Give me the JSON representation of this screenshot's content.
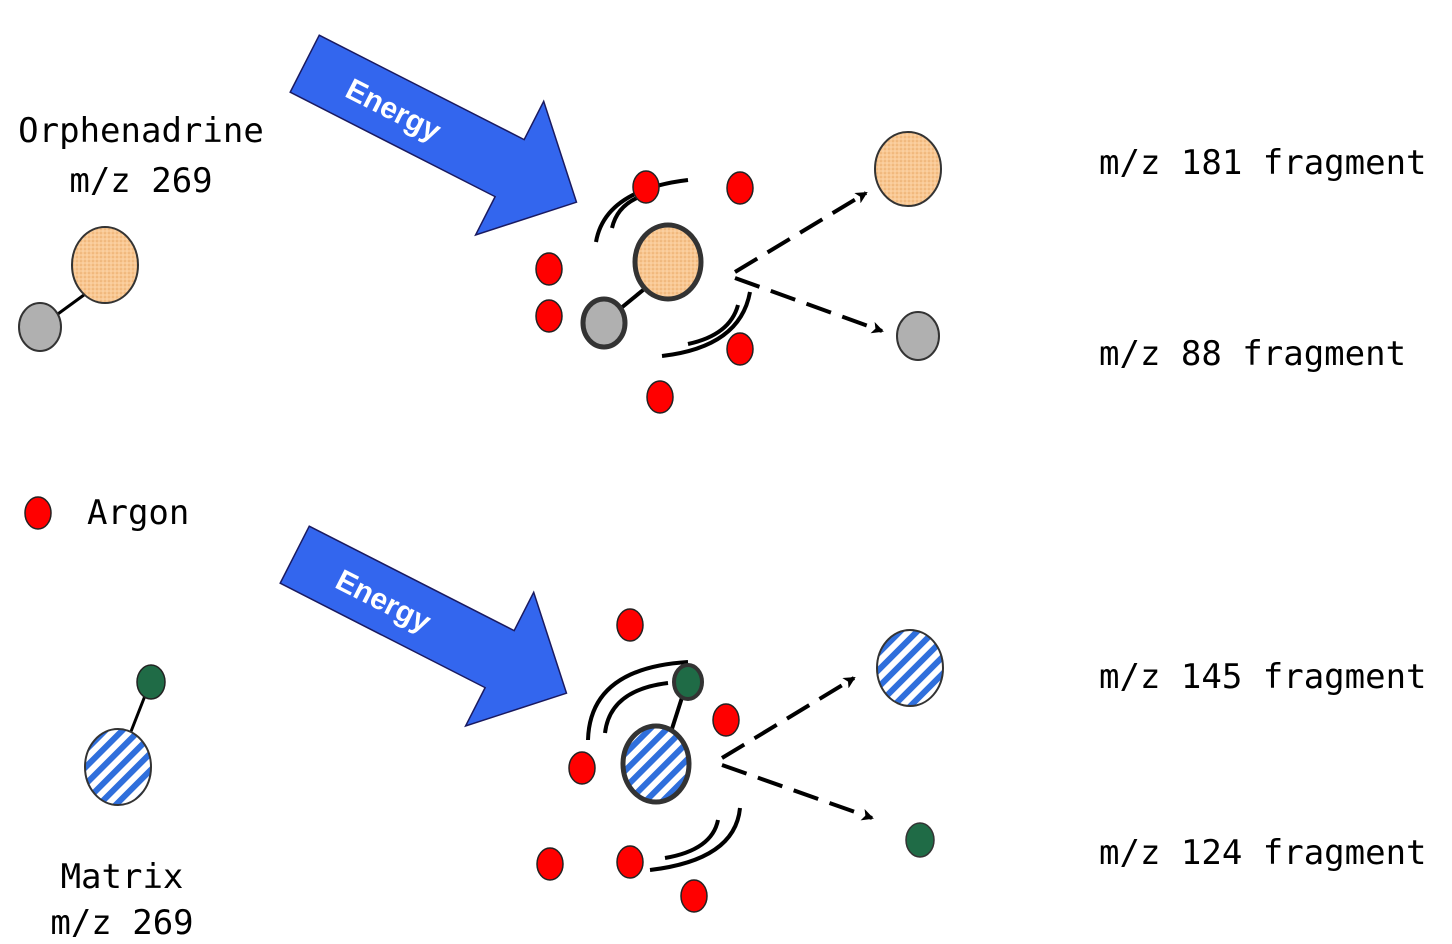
{
  "labels": {
    "orphenadrine_name": "Orphenadrine",
    "orphenadrine_mz": "m/z 269",
    "argon": "Argon",
    "matrix_name": "Matrix",
    "matrix_mz": "m/z 269",
    "energy_top": "Energy",
    "energy_bottom": "Energy"
  },
  "fragments": {
    "top_large": "m/z 181 fragment",
    "top_small": "m/z 88 fragment",
    "bottom_large": "m/z 145 fragment",
    "bottom_small": "m/z 124 fragment"
  },
  "colors": {
    "argon": "#ff0000",
    "orphenadrine_large": "#f9c893",
    "orphenadrine_small": "#b0b0b0",
    "matrix_stripe_blue": "#2f6fdc",
    "matrix_small": "#1f6b46",
    "energy_arrow": "#3366ee"
  }
}
